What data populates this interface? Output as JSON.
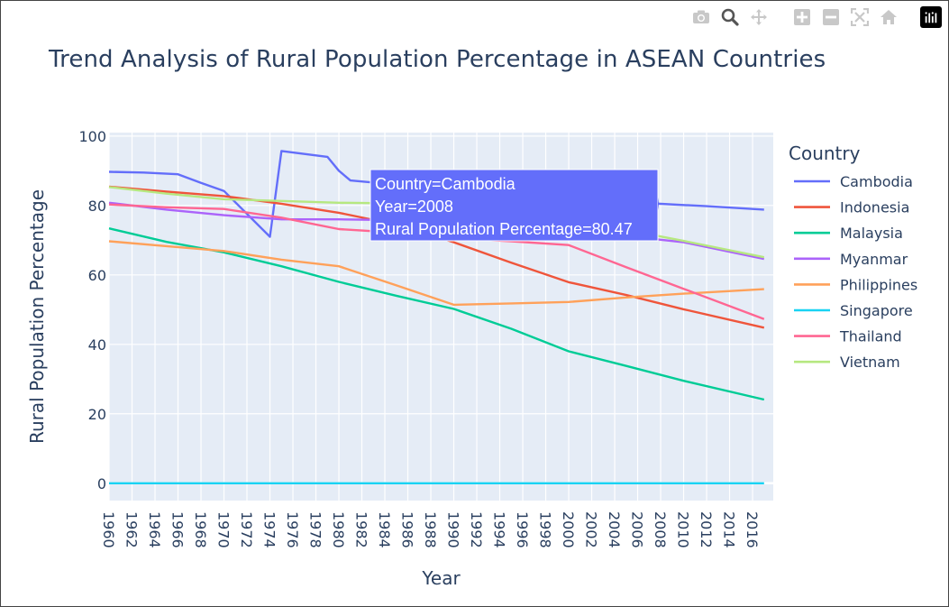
{
  "chart_data": {
    "type": "line",
    "title": "Trend Analysis of Rural Population Percentage in ASEAN Countries",
    "xlabel": "Year",
    "ylabel": "Rural Population Percentage",
    "xlim": [
      1960,
      2017.8
    ],
    "ylim": [
      -5,
      101
    ],
    "y_ticks": [
      0,
      20,
      40,
      60,
      80,
      100
    ],
    "x_ticks": [
      1960,
      1962,
      1964,
      1966,
      1968,
      1970,
      1972,
      1974,
      1976,
      1978,
      1980,
      1982,
      1984,
      1986,
      1988,
      1990,
      1992,
      1994,
      1996,
      1998,
      2000,
      2002,
      2004,
      2006,
      2008,
      2010,
      2012,
      2014,
      2016
    ],
    "grid": true,
    "legend_title": "Country",
    "legend_position": "right",
    "series": [
      {
        "name": "Cambodia",
        "color": "#636efa",
        "x": [
          1960,
          1963,
          1966,
          1968,
          1970,
          1974,
          1975,
          1979,
          1980,
          1981,
          1985,
          1990,
          1995,
          2000,
          2005,
          2008,
          2012,
          2017
        ],
        "y": [
          89.7,
          89.5,
          89.0,
          86.5,
          84.2,
          71.0,
          95.7,
          94.0,
          90.0,
          87.2,
          86.0,
          85.0,
          83.5,
          82.0,
          81.0,
          80.47,
          79.8,
          78.8
        ]
      },
      {
        "name": "Indonesia",
        "color": "#EF553B",
        "x": [
          1960,
          1965,
          1970,
          1975,
          1980,
          1985,
          1990,
          1995,
          2000,
          2005,
          2010,
          2017
        ],
        "y": [
          85.4,
          84.0,
          82.7,
          80.5,
          77.9,
          74.5,
          69.4,
          63.5,
          57.9,
          54.2,
          50.1,
          44.8
        ]
      },
      {
        "name": "Malaysia",
        "color": "#00cc96",
        "x": [
          1960,
          1965,
          1970,
          1975,
          1980,
          1985,
          1990,
          1995,
          2000,
          2005,
          2010,
          2017
        ],
        "y": [
          73.4,
          69.5,
          66.5,
          62.5,
          58.0,
          54.0,
          50.2,
          44.5,
          38.0,
          33.8,
          29.5,
          24.1
        ]
      },
      {
        "name": "Myanmar",
        "color": "#ab63fa",
        "x": [
          1960,
          1965,
          1970,
          1975,
          1980,
          1985,
          1990,
          1995,
          2000,
          2005,
          2010,
          2017
        ],
        "y": [
          80.8,
          78.8,
          77.2,
          76.0,
          76.0,
          75.8,
          75.1,
          73.8,
          72.6,
          71.2,
          69.4,
          64.6
        ]
      },
      {
        "name": "Philippines",
        "color": "#FFA15A",
        "x": [
          1960,
          1965,
          1970,
          1975,
          1980,
          1985,
          1990,
          1995,
          2000,
          2005,
          2010,
          2017
        ],
        "y": [
          69.7,
          68.3,
          66.9,
          64.4,
          62.5,
          57.0,
          51.4,
          51.8,
          52.2,
          53.5,
          54.6,
          55.9
        ]
      },
      {
        "name": "Singapore",
        "color": "#19d3f3",
        "x": [
          1960,
          2017
        ],
        "y": [
          0,
          0
        ]
      },
      {
        "name": "Thailand",
        "color": "#FF6692",
        "x": [
          1960,
          1965,
          1970,
          1975,
          1980,
          1985,
          1990,
          1995,
          2000,
          2005,
          2010,
          2017
        ],
        "y": [
          80.3,
          79.5,
          79.0,
          76.5,
          73.2,
          72.2,
          70.6,
          69.7,
          68.6,
          62.2,
          56.0,
          47.3
        ]
      },
      {
        "name": "Vietnam",
        "color": "#B6E880",
        "x": [
          1960,
          1965,
          1970,
          1975,
          1980,
          1985,
          1990,
          1995,
          2000,
          2005,
          2010,
          2017
        ],
        "y": [
          85.3,
          83.4,
          81.8,
          81.3,
          80.8,
          80.6,
          79.7,
          77.8,
          75.6,
          73.0,
          69.8,
          65.1
        ]
      }
    ]
  },
  "hover": {
    "line1": "Country=Cambodia",
    "line2": "Year=2008",
    "line3": "Rural Population Percentage=80.47",
    "color": "#636efa",
    "x": 2008,
    "y": 80.47
  },
  "modebar": {
    "icons": [
      "camera-icon",
      "zoom-icon",
      "pan-icon",
      "zoom-in-icon",
      "zoom-out-icon",
      "autoscale-icon",
      "reset-axes-icon",
      "plotly-logo-icon"
    ]
  }
}
